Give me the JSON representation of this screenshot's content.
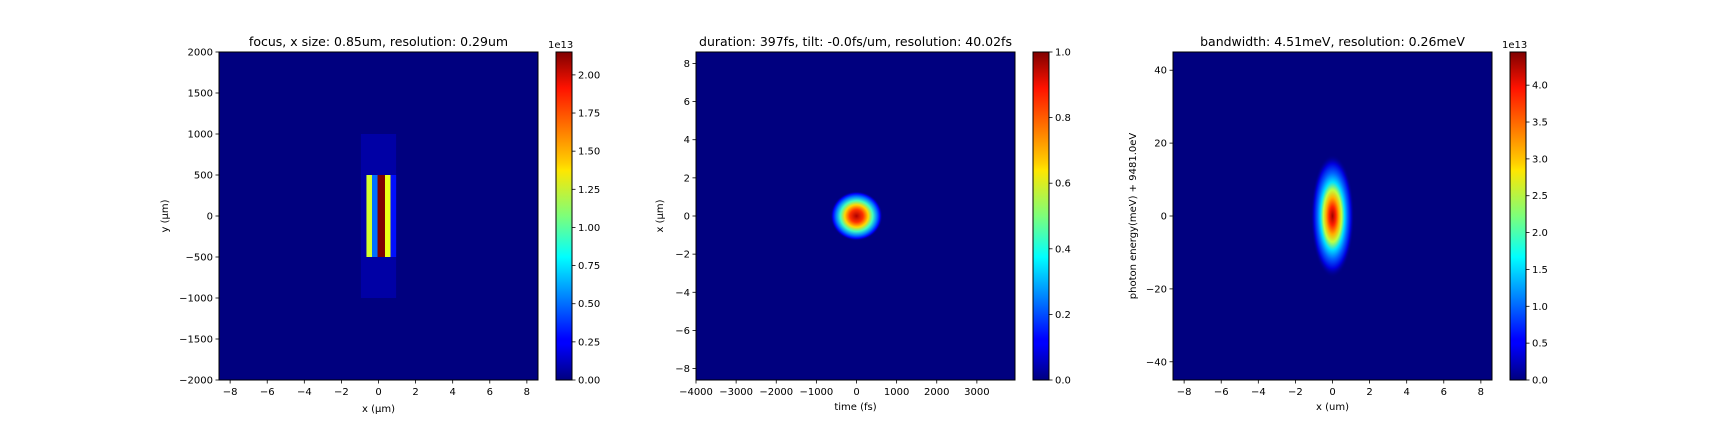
{
  "figure": {
    "panels": [
      {
        "title": "focus, x size: 0.85um, resolution: 0.29um",
        "xlabel": "x (μm)",
        "ylabel": "y (μm)"
      },
      {
        "title": "duration: 397fs, tilt: -0.0fs/um, resolution: 40.02fs",
        "xlabel": "time (fs)",
        "ylabel": "x (μm)"
      },
      {
        "title": "bandwidth: 4.51meV, resolution: 0.26meV",
        "xlabel": "x (um)",
        "ylabel": "photon energy(meV) + 9481.0eV"
      }
    ]
  },
  "colors": {
    "colormap": "jet",
    "axes_edge": "#000000",
    "background": "#ffffff"
  },
  "chart_data": [
    {
      "type": "heatmap",
      "title": "focus, x size: 0.85um, resolution: 0.29um",
      "xlabel": "x (μm)",
      "ylabel": "y (μm)",
      "xlim": [
        -8.6,
        8.6
      ],
      "ylim": [
        -2000,
        2000
      ],
      "xticks": [
        -8,
        -6,
        -4,
        -2,
        0,
        2,
        4,
        6,
        8
      ],
      "yticks": [
        -2000,
        -1500,
        -1000,
        -500,
        0,
        500,
        1000,
        1500,
        2000
      ],
      "colorbar": {
        "min": 0.0,
        "max": 2.15,
        "ticks": [
          "0.00",
          "0.25",
          "0.50",
          "0.75",
          "1.00",
          "1.25",
          "1.50",
          "1.75",
          "2.00"
        ],
        "exponent_label": "1e13"
      },
      "features": [
        {
          "shape": "bar",
          "x": [
            -0.95,
            0.95
          ],
          "y": [
            -1000,
            1000
          ],
          "value": 0.08
        },
        {
          "shape": "bar",
          "x": [
            -0.65,
            -0.35
          ],
          "y": [
            -500,
            500
          ],
          "value": 1.25
        },
        {
          "shape": "bar",
          "x": [
            -0.35,
            -0.05
          ],
          "y": [
            -500,
            500
          ],
          "value": 0.5
        },
        {
          "shape": "bar",
          "x": [
            -0.05,
            0.35
          ],
          "y": [
            -500,
            500
          ],
          "value": 2.15
        },
        {
          "shape": "bar",
          "x": [
            0.35,
            0.65
          ],
          "y": [
            -500,
            500
          ],
          "value": 1.3
        },
        {
          "shape": "bar",
          "x": [
            0.65,
            0.95
          ],
          "y": [
            -500,
            500
          ],
          "value": 0.3
        }
      ]
    },
    {
      "type": "heatmap",
      "title": "duration: 397fs, tilt: -0.0fs/um, resolution: 40.02fs",
      "xlabel": "time (fs)",
      "ylabel": "x (μm)",
      "xlim": [
        -4000,
        3950
      ],
      "ylim": [
        -8.6,
        8.6
      ],
      "xticks": [
        -4000,
        -3000,
        -2000,
        -1000,
        0,
        1000,
        2000,
        3000
      ],
      "yticks": [
        -8,
        -6,
        -4,
        -2,
        0,
        2,
        4,
        6,
        8
      ],
      "colorbar": {
        "min": 0.0,
        "max": 1.0,
        "ticks": [
          "0.0",
          "0.2",
          "0.4",
          "0.6",
          "0.8",
          "1.0"
        ],
        "exponent_label": ""
      },
      "features": [
        {
          "shape": "gaussian",
          "center": [
            0,
            0
          ],
          "sigma": [
            250,
            0.5
          ],
          "value": 1.0
        }
      ]
    },
    {
      "type": "heatmap",
      "title": "bandwidth: 4.51meV, resolution: 0.26meV",
      "xlabel": "x (um)",
      "ylabel": "photon energy(meV) + 9481.0eV",
      "xlim": [
        -8.6,
        8.6
      ],
      "ylim": [
        -45,
        45
      ],
      "xticks": [
        -8,
        -6,
        -4,
        -2,
        0,
        2,
        4,
        6,
        8
      ],
      "yticks": [
        -40,
        -20,
        0,
        20,
        40
      ],
      "colorbar": {
        "min": 0.0,
        "max": 4.45,
        "ticks": [
          "0.0",
          "0.5",
          "1.0",
          "1.5",
          "2.0",
          "2.5",
          "3.0",
          "3.5",
          "4.0"
        ],
        "exponent_label": "1e13"
      },
      "features": [
        {
          "shape": "gaussian",
          "center": [
            0,
            0
          ],
          "sigma": [
            0.45,
            6.5
          ],
          "value": 4.45
        }
      ]
    }
  ]
}
